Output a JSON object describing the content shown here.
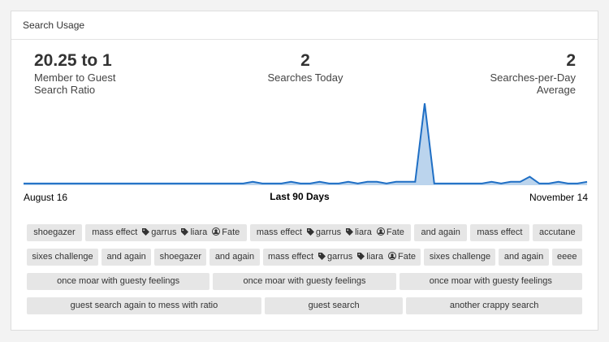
{
  "panel": {
    "title": "Search Usage"
  },
  "stats": [
    {
      "value": "20.25 to 1",
      "label": [
        "Member to Guest",
        "Search Ratio"
      ]
    },
    {
      "value": "2",
      "label": [
        "Searches Today"
      ]
    },
    {
      "value": "2",
      "label": [
        "Searches-per-Day",
        "Average"
      ]
    }
  ],
  "chart": {
    "type": "area",
    "start": "August 16",
    "middle": "Last 90 Days",
    "end": "November 14",
    "color": "#1f6fc5",
    "ylim": [
      0,
      50
    ],
    "values": [
      1,
      1,
      1,
      1,
      1,
      1,
      1,
      1,
      1,
      1,
      1,
      1,
      1,
      1,
      1,
      1,
      1,
      1,
      1,
      1,
      1,
      1,
      1,
      1,
      2,
      1,
      1,
      1,
      2,
      1,
      1,
      2,
      1,
      1,
      2,
      1,
      2,
      2,
      1,
      2,
      2,
      2,
      48,
      1,
      1,
      1,
      1,
      1,
      1,
      2,
      1,
      2,
      2,
      5,
      1,
      1,
      2,
      1,
      1,
      2
    ]
  },
  "tags": [
    {
      "label": "shoegazer"
    },
    {
      "label": "mass effect",
      "tags": [
        "garrus",
        "liara"
      ],
      "user": "Fate"
    },
    {
      "label": "mass effect",
      "tags": [
        "garrus",
        "liara"
      ],
      "user": "Fate"
    },
    {
      "label": "and again"
    },
    {
      "label": "mass effect"
    },
    {
      "label": "accutane"
    },
    {
      "label": "sixes challenge"
    },
    {
      "label": "and again"
    },
    {
      "label": "shoegazer"
    },
    {
      "label": "and again"
    },
    {
      "label": "mass effect",
      "tags": [
        "garrus",
        "liara"
      ],
      "user": "Fate"
    },
    {
      "label": "sixes challenge"
    },
    {
      "label": "and again"
    },
    {
      "label": "eeee"
    },
    {
      "label": "once moar with guesty feelings"
    },
    {
      "label": "once moar with guesty feelings"
    },
    {
      "label": "once moar with guesty feelings"
    },
    {
      "label": "guest search again to mess with ratio"
    },
    {
      "label": "guest search"
    },
    {
      "label": "another crappy search"
    }
  ]
}
